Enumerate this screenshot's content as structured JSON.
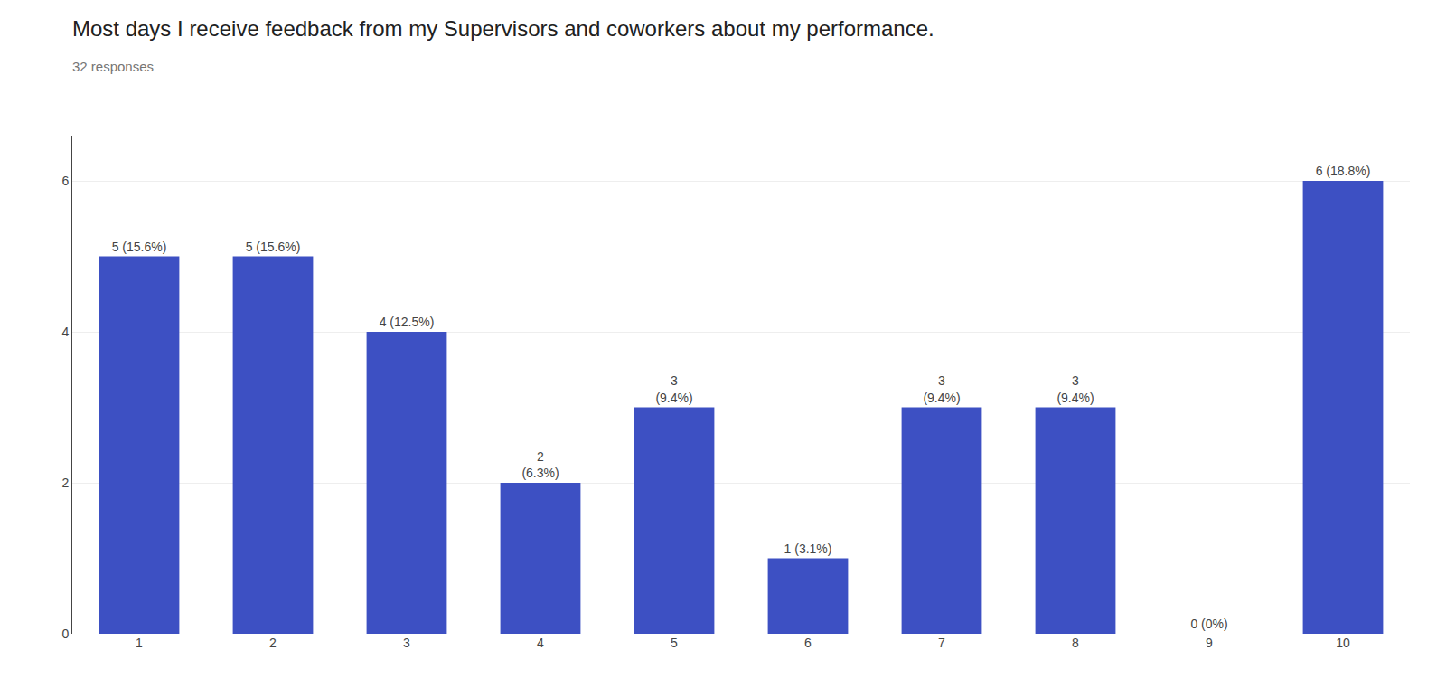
{
  "chart_data": {
    "type": "bar",
    "title": "Most days I receive feedback from my Supervisors and coworkers about my performance.",
    "subtitle": "32 responses",
    "categories": [
      "1",
      "2",
      "3",
      "4",
      "5",
      "6",
      "7",
      "8",
      "9",
      "10"
    ],
    "values": [
      5,
      5,
      4,
      2,
      3,
      1,
      3,
      3,
      0,
      6
    ],
    "data_labels": true,
    "value_labels": [
      "5 (15.6%)",
      "5 (15.6%)",
      "4 (12.5%)",
      "2\n(6.3%)",
      "3\n(9.4%)",
      "1 (3.1%)",
      "3\n(9.4%)",
      "3\n(9.4%)",
      "0 (0%)",
      "6 (18.8%)"
    ],
    "color": "#3d50c3",
    "ylim": [
      0,
      6.6
    ],
    "yticks": [
      0,
      2,
      4,
      6
    ],
    "grid": true
  }
}
